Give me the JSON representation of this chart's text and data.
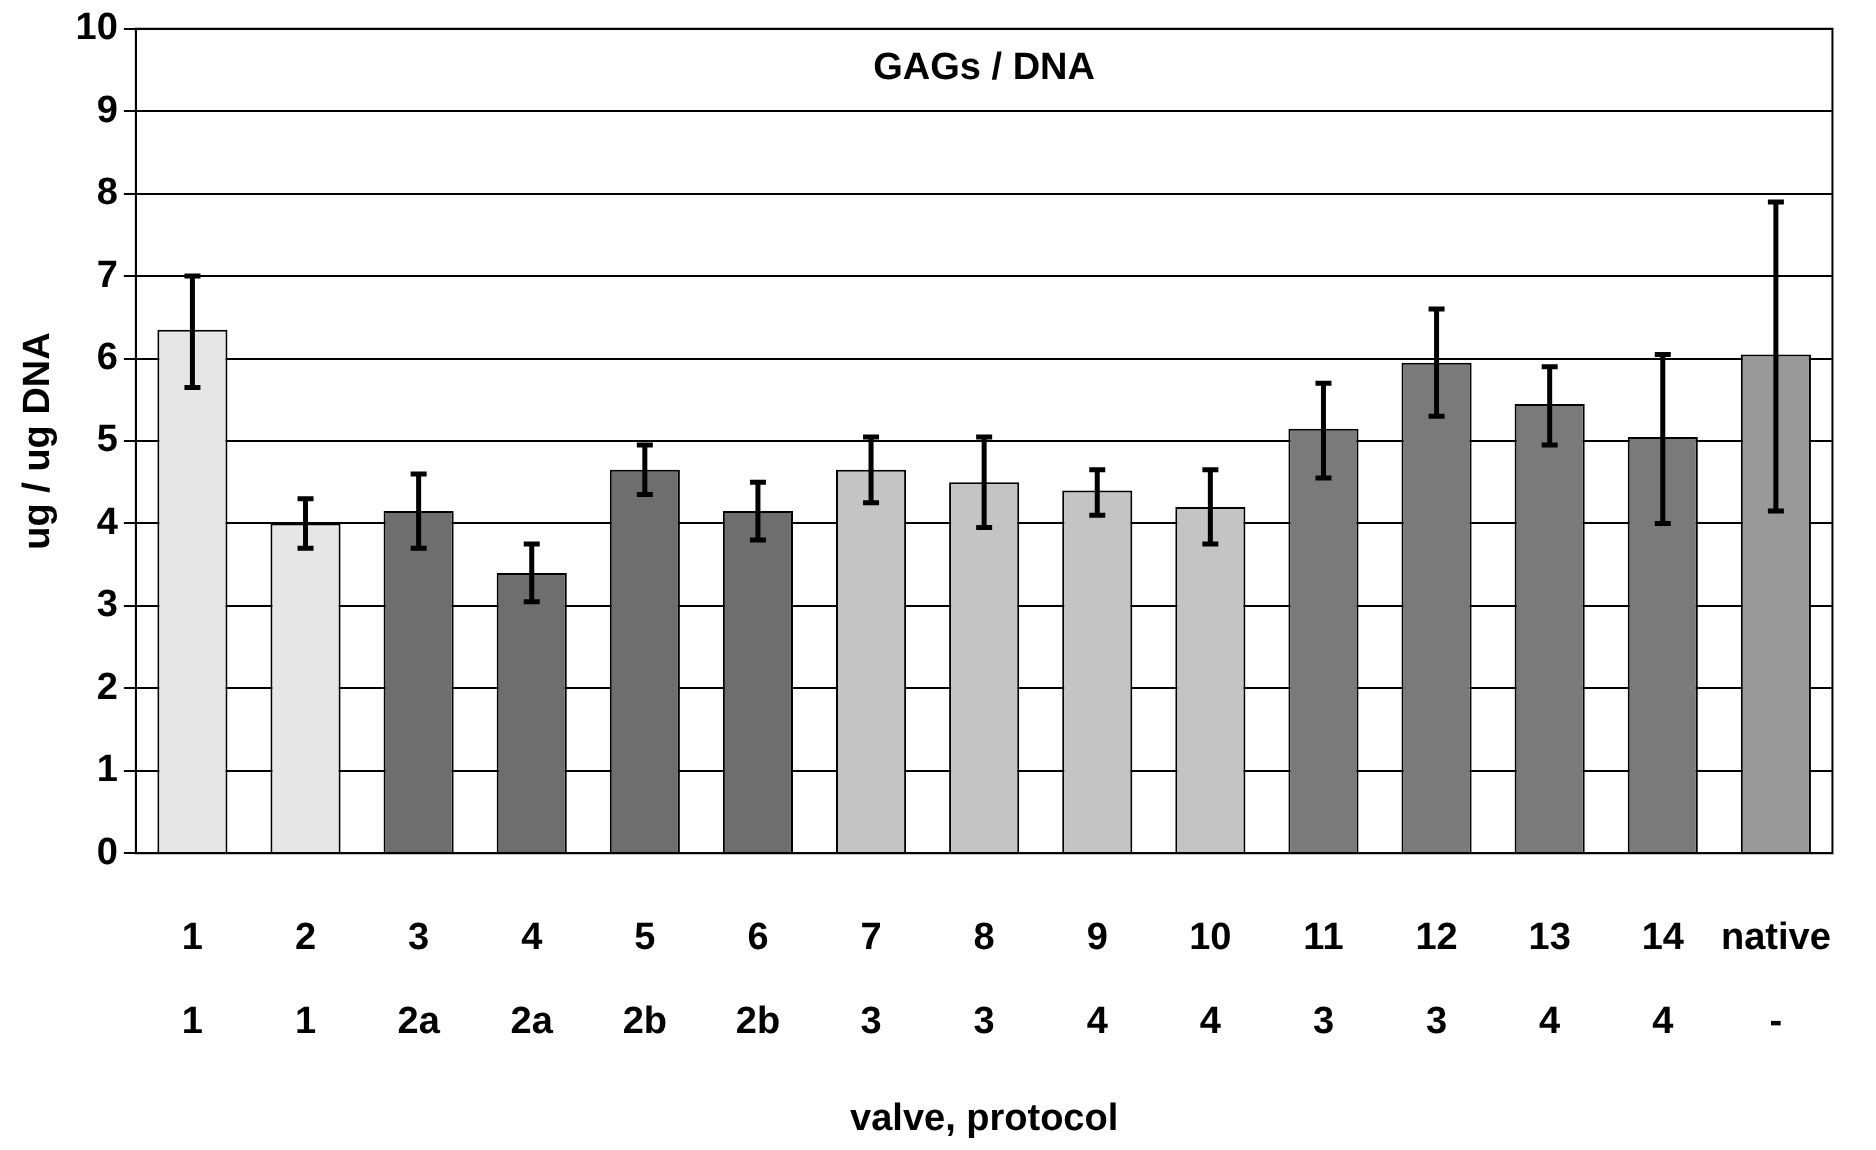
{
  "chart_data": {
    "type": "bar",
    "title": "GAGs / DNA",
    "xlabel": "valve, protocol",
    "ylabel": "ug / ug DNA",
    "categories": [
      "1\n1",
      "2\n1",
      "3\n2a",
      "4\n2a",
      "5\n2b",
      "6\n2b",
      "7\n3",
      "8\n3",
      "9\n4",
      "10\n4",
      "11\n3",
      "12\n3",
      "13\n4",
      "14\n4",
      "native\n-"
    ],
    "values": [
      6.35,
      4.0,
      4.15,
      3.4,
      4.65,
      4.15,
      4.65,
      4.5,
      4.4,
      4.2,
      5.15,
      5.95,
      5.45,
      5.05,
      6.05
    ],
    "errors": [
      [
        5.65,
        7.0
      ],
      [
        3.7,
        4.3
      ],
      [
        3.7,
        4.6
      ],
      [
        3.05,
        3.75
      ],
      [
        4.35,
        4.95
      ],
      [
        3.8,
        4.5
      ],
      [
        4.25,
        5.05
      ],
      [
        3.95,
        5.05
      ],
      [
        4.1,
        4.65
      ],
      [
        3.75,
        4.65
      ],
      [
        4.55,
        5.7
      ],
      [
        5.3,
        6.6
      ],
      [
        4.95,
        5.9
      ],
      [
        4.0,
        6.05
      ],
      [
        4.15,
        7.9
      ]
    ],
    "colors": [
      "#e6e6e6",
      "#e6e6e6",
      "#6e6e6e",
      "#6e6e6e",
      "#6e6e6e",
      "#6e6e6e",
      "#c4c4c4",
      "#c4c4c4",
      "#c4c4c4",
      "#c4c4c4",
      "#7a7a7a",
      "#7a7a7a",
      "#7a7a7a",
      "#7a7a7a",
      "#999999"
    ],
    "ylim": [
      0,
      10
    ],
    "yticks": [
      0,
      1,
      2,
      3,
      4,
      5,
      6,
      7,
      8,
      9,
      10
    ],
    "grid": "y",
    "legend": false
  }
}
